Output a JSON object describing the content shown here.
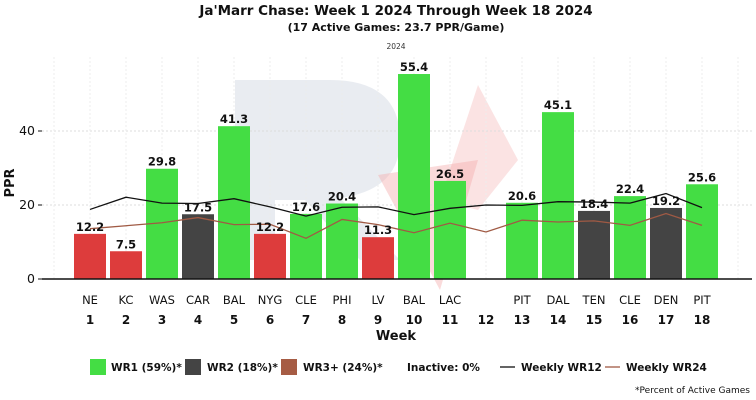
{
  "chart_data": {
    "type": "bar",
    "title": "Ja'Marr Chase: Week 1 2024 Through Week 18 2024",
    "subtitle": "(17 Active Games: 23.7 PPR/Game)",
    "season_label": "2024",
    "xlabel": "Week",
    "ylabel": "PPR",
    "ylim": [
      0,
      60
    ],
    "yticks": [
      0,
      20,
      40
    ],
    "grid": true,
    "weeks": [
      "1",
      "2",
      "3",
      "4",
      "5",
      "6",
      "7",
      "8",
      "9",
      "10",
      "11",
      "12",
      "13",
      "14",
      "15",
      "16",
      "17",
      "18"
    ],
    "opponents": [
      "NE",
      "KC",
      "WAS",
      "CAR",
      "BAL",
      "NYG",
      "CLE",
      "PHI",
      "LV",
      "BAL",
      "LAC",
      "",
      "PIT",
      "DAL",
      "TEN",
      "CLE",
      "DEN",
      "PIT"
    ],
    "values": [
      12.2,
      7.5,
      29.8,
      17.5,
      41.3,
      12.2,
      17.6,
      20.4,
      11.3,
      55.4,
      26.5,
      null,
      20.6,
      45.1,
      18.4,
      22.4,
      19.2,
      25.6
    ],
    "value_labels": [
      "12.2",
      "7.5",
      "29.8",
      "17.5",
      "41.3",
      "12.2",
      "17.6",
      "20.4",
      "11.3",
      "55.4",
      "26.5",
      "",
      "20.6",
      "45.1",
      "18.4",
      "22.4",
      "19.2",
      "25.6"
    ],
    "roles": [
      "WR3+",
      "WR3+",
      "WR1",
      "WR2",
      "WR1",
      "WR3+",
      "WR1",
      "WR1",
      "WR3+",
      "WR1",
      "WR1",
      "bye",
      "WR1",
      "WR1",
      "WR2",
      "WR1",
      "WR2",
      "WR1"
    ],
    "weekly_wr12": [
      18.8,
      22.1,
      20.5,
      20.4,
      21.7,
      19.5,
      17.0,
      19.4,
      19.5,
      17.4,
      19.1,
      20.0,
      19.9,
      20.9,
      20.8,
      20.5,
      23.1,
      19.3
    ],
    "weekly_wr24": [
      13.6,
      14.4,
      15.2,
      16.6,
      14.7,
      14.8,
      11.0,
      16.1,
      14.7,
      12.5,
      15.1,
      12.7,
      15.9,
      15.4,
      15.7,
      14.5,
      17.7,
      14.5
    ],
    "colors": {
      "WR1": "#44dd44",
      "WR2": "#444444",
      "WR3+": "#dd3c3c",
      "legend_WR3+": "#a65c44",
      "wr12_line": "#111111",
      "wr24_line": "#a05a44"
    },
    "legend": [
      {
        "key": "WR1",
        "label": "WR1 (59%)*"
      },
      {
        "key": "WR2",
        "label": "WR2 (18%)*"
      },
      {
        "key": "WR3+",
        "label": "WR3+ (24%)*"
      },
      {
        "key": "inactive",
        "label": "Inactive: 0%"
      },
      {
        "key": "wr12",
        "label": "Weekly WR12"
      },
      {
        "key": "wr24",
        "label": "Weekly WR24"
      }
    ],
    "legend_position": "bottom",
    "footnote": "*Percent of Active Games"
  }
}
